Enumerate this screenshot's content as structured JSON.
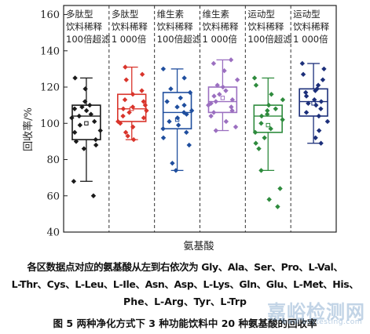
{
  "chart_data": {
    "type": "box",
    "ylabel": "回收率/%",
    "xlabel": "氨基酸",
    "ylim": [
      40,
      165
    ],
    "yticks": [
      40,
      60,
      80,
      100,
      120,
      140,
      160
    ],
    "grid": false,
    "groups": [
      {
        "label_lines": [
          "多肽型",
          "饮料稀释",
          "100倍超滤"
        ],
        "color": "#1a1a1a",
        "box": {
          "whisker_low": 68,
          "q1": 91,
          "median": 104,
          "q3": 110,
          "whisker_high": 125,
          "mean": 100
        },
        "points": [
          60,
          68,
          86,
          88,
          90,
          91,
          95,
          96,
          99,
          101,
          103,
          104,
          105,
          107,
          108,
          109,
          110,
          112,
          119,
          125
        ]
      },
      {
        "label_lines": [
          "多肽型",
          "饮料稀释",
          "1 000倍"
        ],
        "color": "#d9342b",
        "box": {
          "whisker_low": 91,
          "q1": 101,
          "median": 108,
          "q3": 116,
          "whisker_high": 131,
          "mean": 108
        },
        "points": [
          91,
          93,
          95,
          98,
          100,
          101,
          103,
          104,
          106,
          107,
          108,
          109,
          110,
          112,
          113,
          116,
          118,
          124,
          127,
          131
        ]
      },
      {
        "label_lines": [
          "维生素",
          "饮料稀释",
          "100倍超滤"
        ],
        "color": "#1f4e9e",
        "box": {
          "whisker_low": 74,
          "q1": 97,
          "median": 106,
          "q3": 117,
          "whisker_high": 130,
          "mean": 102
        },
        "points": [
          74,
          78,
          88,
          92,
          95,
          97,
          99,
          101,
          103,
          105,
          106,
          107,
          109,
          110,
          112,
          114,
          117,
          119,
          125,
          130
        ]
      },
      {
        "label_lines": [
          "维生素",
          "饮料稀释",
          "1 000倍"
        ],
        "color": "#9b6fc0",
        "box": {
          "whisker_low": 96,
          "q1": 106,
          "median": 112,
          "q3": 120,
          "whisker_high": 135,
          "mean": 114
        },
        "points": [
          96,
          98,
          101,
          104,
          106,
          107,
          109,
          110,
          111,
          112,
          113,
          115,
          116,
          118,
          120,
          121,
          124,
          129,
          133,
          135
        ]
      },
      {
        "label_lines": [
          "运动型",
          "饮料稀释",
          "100倍超滤"
        ],
        "color": "#2e8b3d",
        "box": {
          "whisker_low": 74,
          "q1": 95,
          "median": 104,
          "q3": 110,
          "whisker_high": 125,
          "mean": 99
        },
        "points": [
          54,
          58,
          64,
          74,
          86,
          89,
          92,
          95,
          97,
          100,
          102,
          104,
          105,
          107,
          108,
          110,
          113,
          116,
          121,
          125
        ]
      },
      {
        "label_lines": [
          "运动型",
          "饮料稀释",
          "1 000倍"
        ],
        "color": "#1c2f7a",
        "box": {
          "whisker_low": 89,
          "q1": 104,
          "median": 112,
          "q3": 119,
          "whisker_high": 133,
          "mean": 111
        },
        "points": [
          89,
          92,
          96,
          101,
          104,
          106,
          108,
          110,
          111,
          112,
          113,
          115,
          117,
          118,
          119,
          121,
          124,
          127,
          130,
          133
        ]
      }
    ]
  },
  "caption": {
    "note_line_1": "各区数据点对应的氨基酸从左到右依次为 Gly、Ala、Ser、Pro、L-Val、",
    "note_line_2": "L-Thr、Cys、L-Leu、L-Ile、Asn、Asp、L-Lys、Gln、Glu、L-Met、His、",
    "note_line_3": "Phe、L-Arg、Tyr、L-Trp",
    "figure": "图 5   两种净化方式下 3 种功能饮料中 20 种氨基酸的回收率"
  },
  "watermark": {
    "text": "嘉峪检测网",
    "sub": "www.anytesting.com"
  }
}
